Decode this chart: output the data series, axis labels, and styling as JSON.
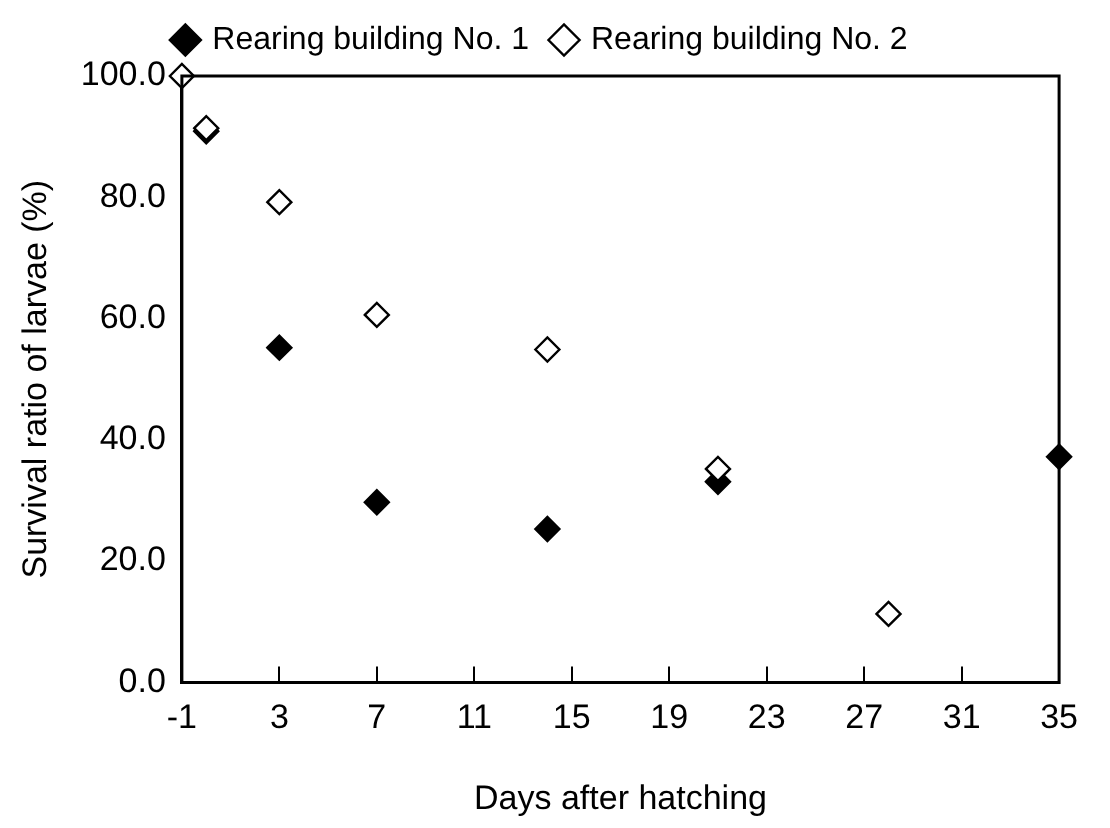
{
  "chart_data": {
    "type": "scatter",
    "xlabel": "Days after hatching",
    "ylabel": "Survival ratio of larvae (%)",
    "series": [
      {
        "name": "Rearing building No. 1",
        "color": "#000000",
        "x": [
          0,
          3,
          7,
          14,
          21,
          35
        ],
        "values": [
          90.9,
          55.2,
          29.7,
          25.3,
          33.1,
          37.2
        ]
      },
      {
        "name": "Rearing building No. 2",
        "color": "#ffffff",
        "x": [
          -1,
          0,
          3,
          7,
          14,
          21,
          28
        ],
        "values": [
          100,
          91.4,
          79.2,
          60.6,
          54.9,
          35.2,
          11.3
        ]
      }
    ],
    "xlim": [
      -1,
      35
    ],
    "xticks": [
      -1,
      3,
      7,
      11,
      15,
      19,
      23,
      27,
      31,
      35
    ],
    "ylim": [
      0,
      100
    ],
    "yticks": [
      {
        "value": 0,
        "label": "0.0"
      },
      {
        "value": 20,
        "label": "20.0"
      },
      {
        "value": 40,
        "label": "40.0"
      },
      {
        "value": 60,
        "label": "60.0"
      },
      {
        "value": 80,
        "label": "80.0"
      },
      {
        "value": 100,
        "label": "100.0"
      }
    ],
    "grid": false,
    "legend": "top",
    "marker": "diamond"
  }
}
